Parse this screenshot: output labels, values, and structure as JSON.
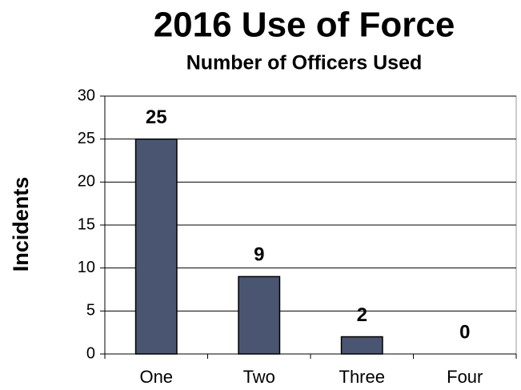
{
  "chart_data": {
    "type": "bar",
    "title": "2016 Use of Force",
    "subtitle": "Number of Officers Used",
    "y_label": "Incidents",
    "categories": [
      "One",
      "Two",
      "Three",
      "Four"
    ],
    "values": [
      25,
      9,
      2,
      0
    ],
    "color": "#4a5571",
    "ylim": [
      0,
      30
    ],
    "yticks": [
      0,
      5,
      10,
      15,
      20,
      25,
      30
    ],
    "grid": true,
    "data_labels": true
  }
}
